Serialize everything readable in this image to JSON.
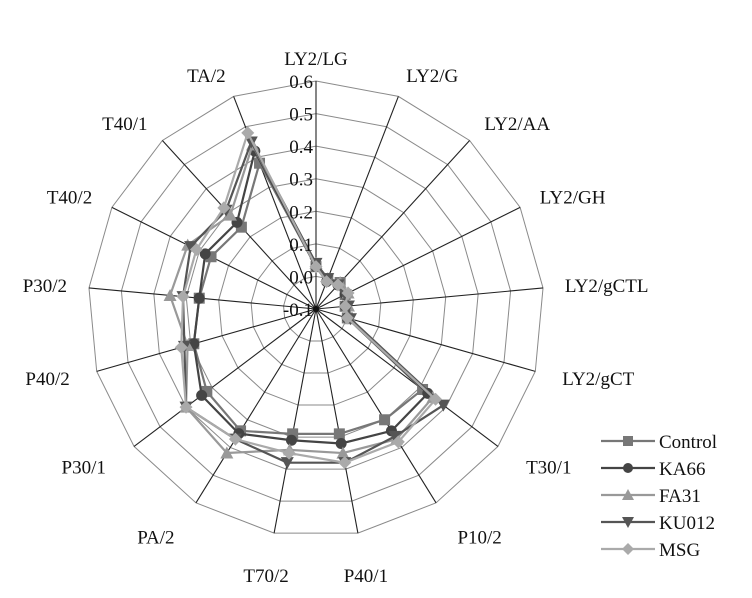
{
  "chart_data": {
    "type": "radar",
    "title": "",
    "categories": [
      "LY2/LG",
      "LY2/G",
      "LY2/AA",
      "LY2/GH",
      "LY2/gCTL",
      "LY2/gCT",
      "T30/1",
      "P10/2",
      "P40/1",
      "T70/2",
      "PA/2",
      "P30/1",
      "P40/2",
      "P30/2",
      "T40/2",
      "T40/1",
      "TA/2"
    ],
    "rlim": [
      -0.1,
      0.6
    ],
    "ticks": [
      "-0.1",
      "0.0",
      "0.1",
      "0.2",
      "0.3",
      "0.4",
      "0.5",
      "0.6"
    ],
    "tick_values": [
      -0.1,
      0.0,
      0.1,
      0.2,
      0.3,
      0.4,
      0.5,
      0.6
    ],
    "grid": true,
    "legend_position": "bottom-right",
    "series": [
      {
        "name": "Control",
        "marker": "square",
        "color": "#777777",
        "values": [
          0.03,
          0.0,
          0.01,
          0.0,
          -0.01,
          0.0,
          0.31,
          0.3,
          0.29,
          0.29,
          0.34,
          0.32,
          0.29,
          0.26,
          0.26,
          0.24,
          0.38
        ]
      },
      {
        "name": "KA66",
        "marker": "circle",
        "color": "#444444",
        "values": [
          0.03,
          -0.01,
          0.0,
          0.0,
          -0.01,
          0.0,
          0.33,
          0.34,
          0.32,
          0.31,
          0.35,
          0.34,
          0.29,
          0.26,
          0.28,
          0.26,
          0.42
        ]
      },
      {
        "name": "FA31",
        "marker": "triangle-up",
        "color": "#999999",
        "values": [
          0.04,
          0.0,
          0.01,
          0.01,
          0.0,
          0.01,
          0.35,
          0.37,
          0.35,
          0.34,
          0.42,
          0.4,
          0.31,
          0.35,
          0.34,
          0.29,
          0.44
        ]
      },
      {
        "name": "KU012",
        "marker": "triangle-down",
        "color": "#555555",
        "values": [
          0.04,
          0.0,
          0.0,
          0.0,
          0.0,
          0.01,
          0.39,
          0.36,
          0.38,
          0.38,
          0.37,
          0.4,
          0.32,
          0.31,
          0.33,
          0.31,
          0.45
        ]
      },
      {
        "name": "MSG",
        "marker": "diamond",
        "color": "#aaaaaa",
        "values": [
          0.03,
          -0.01,
          0.0,
          0.01,
          -0.01,
          0.0,
          0.36,
          0.38,
          0.38,
          0.35,
          0.37,
          0.4,
          0.33,
          0.31,
          0.31,
          0.32,
          0.48
        ]
      }
    ]
  }
}
